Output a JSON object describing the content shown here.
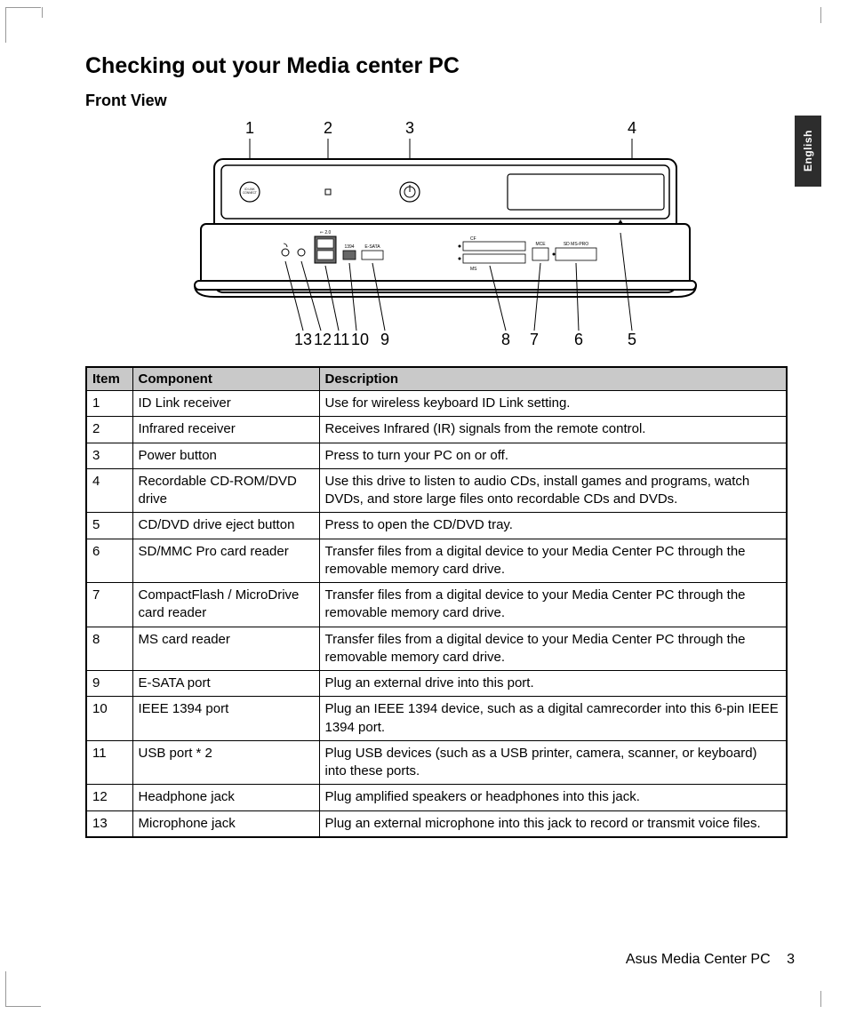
{
  "page": {
    "title": "Checking out your Media center PC",
    "subtitle": "Front View",
    "language_tab": "English",
    "footer_text": "Asus Media Center PC",
    "page_number": "3"
  },
  "callouts": {
    "top": [
      "1",
      "2",
      "3",
      "4"
    ],
    "bottom": [
      "13",
      "12",
      "11",
      "10",
      "9",
      "8",
      "7",
      "6",
      "5"
    ]
  },
  "diagram_labels": {
    "id_link": "ID LINK CONNECT",
    "usb": "2.0",
    "port1394": "1394",
    "esata": "E-SATA",
    "cf": "CF",
    "ms": "MS",
    "mce": "MCE",
    "sd": "SD MS-PRO"
  },
  "table": {
    "headers": [
      "Item",
      "Component",
      "Description"
    ],
    "rows": [
      [
        "1",
        "ID Link receiver",
        "Use for wireless keyboard ID Link setting."
      ],
      [
        "2",
        "Infrared receiver",
        "Receives Infrared (IR) signals from the remote control."
      ],
      [
        "3",
        "Power button",
        "Press to turn your PC on or off."
      ],
      [
        "4",
        "Recordable CD-ROM/DVD drive",
        "Use this drive to listen to audio CDs, install games and programs, watch DVDs, and store large files onto recordable CDs and DVDs."
      ],
      [
        "5",
        "CD/DVD drive eject button",
        "Press to open the CD/DVD tray."
      ],
      [
        "6",
        "SD/MMC Pro card reader",
        "Transfer files from a digital device to your Media Center PC through the removable memory card drive."
      ],
      [
        "7",
        "CompactFlash / MicroDrive card reader",
        "Transfer files from a digital device to your Media Center PC through the removable memory card drive."
      ],
      [
        "8",
        "MS card reader",
        "Transfer files from a digital device to your Media Center PC through the removable memory card drive."
      ],
      [
        "9",
        "E-SATA port",
        "Plug an external drive into this port."
      ],
      [
        "10",
        "IEEE 1394 port",
        "Plug an IEEE 1394 device, such as a digital camrecorder into this 6-pin IEEE 1394 port."
      ],
      [
        "11",
        "USB port * 2",
        "Plug USB devices (such as a USB printer, camera, scanner, or keyboard) into these ports."
      ],
      [
        "12",
        "Headphone jack",
        "Plug amplified speakers or headphones into this jack."
      ],
      [
        "13",
        "Microphone jack",
        "Plug an external microphone into this jack to record or transmit voice files."
      ]
    ]
  },
  "style": {
    "page_bg": "#ffffff",
    "text_color": "#000000",
    "header_bg": "#c9c9c9",
    "border_color": "#000000",
    "lang_tab_bg": "#2d2d2d",
    "lang_tab_fg": "#ffffff",
    "title_fontsize": 25,
    "subtitle_fontsize": 18,
    "body_fontsize": 15
  }
}
